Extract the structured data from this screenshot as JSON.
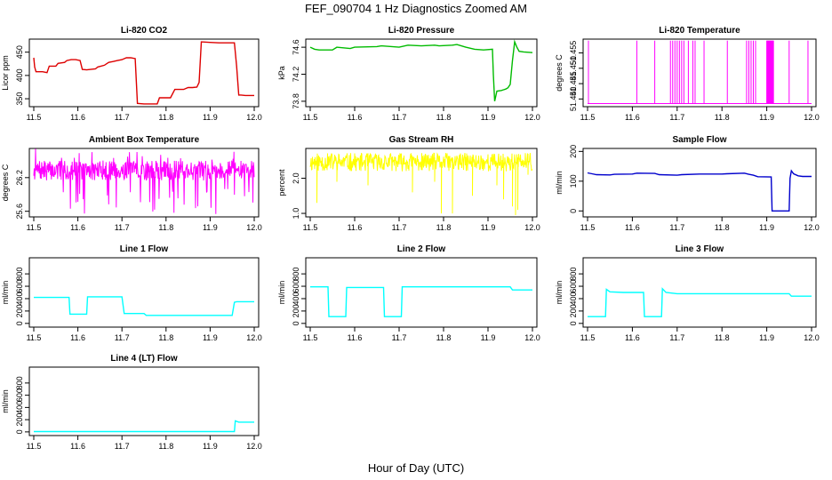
{
  "figure": {
    "title": "FEF_090704  1 Hz Diagnostics Zoomed AM",
    "xlabel": "Hour of Day (UTC)"
  },
  "chart_data": [
    {
      "type": "line",
      "title": "Li-820 CO2",
      "xlabel": "",
      "ylabel": "Licor ppm",
      "xlim": [
        11.5,
        12.0
      ],
      "ylim": [
        333,
        478
      ],
      "x_ticks": [
        11.5,
        11.6,
        11.7,
        11.8,
        11.9,
        12.0
      ],
      "x_tick_labels": [
        "11.5",
        "11.6",
        "11.7",
        "11.8",
        "11.9",
        "12.0"
      ],
      "y_ticks": [
        350,
        400,
        450
      ],
      "y_tick_labels": [
        "350",
        "400",
        "450"
      ],
      "series": [
        {
          "color": "#dd0000",
          "x": [
            11.5,
            11.502,
            11.505,
            11.52,
            11.53,
            11.535,
            11.55,
            11.555,
            11.57,
            11.575,
            11.585,
            11.595,
            11.605,
            11.61,
            11.62,
            11.64,
            11.645,
            11.66,
            11.67,
            11.68,
            11.69,
            11.7,
            11.705,
            11.71,
            11.72,
            11.73,
            11.735,
            11.75,
            11.78,
            11.785,
            11.8,
            11.81,
            11.82,
            11.84,
            11.85,
            11.86,
            11.87,
            11.875,
            11.88,
            11.9,
            11.92,
            11.95,
            11.955,
            11.96,
            11.965,
            11.97,
            11.98,
            12.0
          ],
          "y": [
            438,
            418,
            408,
            408,
            406,
            420,
            420,
            426,
            428,
            432,
            434,
            434,
            432,
            413,
            412,
            414,
            418,
            422,
            428,
            430,
            432,
            434,
            436,
            438,
            438,
            436,
            340,
            339,
            339,
            352,
            352,
            352,
            370,
            370,
            374,
            374,
            375,
            385,
            472,
            471,
            470,
            470,
            470,
            420,
            358,
            358,
            357,
            357
          ]
        }
      ]
    },
    {
      "type": "line",
      "title": "Li-820 Pressure",
      "xlabel": "",
      "ylabel": "kPa",
      "xlim": [
        11.5,
        12.0
      ],
      "ylim": [
        73.72,
        74.72
      ],
      "x_ticks": [
        11.5,
        11.6,
        11.7,
        11.8,
        11.9,
        12.0
      ],
      "x_tick_labels": [
        "11.5",
        "11.6",
        "11.7",
        "11.8",
        "11.9",
        "12.0"
      ],
      "y_ticks": [
        73.8,
        74.2,
        74.6
      ],
      "y_tick_labels": [
        "73.8",
        "74.2",
        "74.6"
      ],
      "series": [
        {
          "color": "#00bb00",
          "x": [
            11.5,
            11.51,
            11.52,
            11.55,
            11.56,
            11.59,
            11.6,
            11.65,
            11.66,
            11.7,
            11.72,
            11.75,
            11.78,
            11.79,
            11.82,
            11.83,
            11.85,
            11.87,
            11.89,
            11.91,
            11.912,
            11.915,
            11.92,
            11.93,
            11.935,
            11.94,
            11.945,
            11.95,
            11.955,
            11.96,
            11.965,
            11.97,
            11.98,
            12.0
          ],
          "y": [
            74.6,
            74.57,
            74.56,
            74.56,
            74.6,
            74.58,
            74.6,
            74.61,
            74.62,
            74.6,
            74.63,
            74.62,
            74.63,
            74.62,
            74.63,
            74.64,
            74.6,
            74.57,
            74.56,
            74.57,
            74.2,
            73.8,
            73.95,
            73.96,
            73.97,
            73.98,
            74.0,
            74.05,
            74.4,
            74.68,
            74.6,
            74.54,
            74.53,
            74.52
          ]
        }
      ]
    },
    {
      "type": "line",
      "title": "Li-820 Temperature",
      "xlabel": "",
      "ylabel": "degrees C",
      "xlim": [
        11.5,
        12.0
      ],
      "ylim": [
        51.4375,
        51.4595
      ],
      "x_ticks": [
        11.5,
        11.6,
        11.7,
        11.8,
        11.9,
        12.0
      ],
      "x_tick_labels": [
        "11.5",
        "11.6",
        "11.7",
        "11.8",
        "11.9",
        "12.0"
      ],
      "y_ticks": [
        51.44,
        51.445,
        51.45,
        51.455
      ],
      "y_tick_labels": [
        "51.440",
        "51.445",
        "51.450",
        "51.455"
      ],
      "baseline": 51.4385,
      "spike_top": 51.459,
      "spikes": [
        11.502,
        11.61,
        11.65,
        11.685,
        11.69,
        11.695,
        11.7,
        11.705,
        11.71,
        11.715,
        11.725,
        11.735,
        11.74,
        11.76,
        11.812,
        11.855,
        11.86,
        11.865,
        11.87,
        11.875,
        11.9,
        11.901,
        11.902,
        11.903,
        11.904,
        11.905,
        11.906,
        11.907,
        11.908,
        11.909,
        11.91,
        11.911,
        11.912,
        11.913,
        11.914,
        11.915,
        11.95,
        11.992
      ],
      "series": [
        {
          "color": "#ff00ff"
        }
      ]
    },
    {
      "type": "line",
      "title": "Ambient Box Temperature",
      "xlabel": "",
      "ylabel": "degrees C",
      "xlim": [
        11.5,
        12.0
      ],
      "ylim": [
        25.5,
        26.72
      ],
      "x_ticks": [
        11.5,
        11.6,
        11.7,
        11.8,
        11.9,
        12.0
      ],
      "x_tick_labels": [
        "11.5",
        "11.6",
        "11.7",
        "11.8",
        "11.9",
        "12.0"
      ],
      "y_ticks": [
        25.6,
        26.2
      ],
      "y_tick_labels": [
        "25.6",
        "26.2"
      ],
      "noise": {
        "center": 26.3,
        "band_low": 26.15,
        "band_high": 26.5,
        "min": 25.55,
        "max": 26.72,
        "seed": 7
      },
      "series": [
        {
          "color": "#ff00ff"
        }
      ]
    },
    {
      "type": "line",
      "title": "Gas Stream RH",
      "xlabel": "",
      "ylabel": "percent",
      "xlim": [
        11.5,
        12.0
      ],
      "ylim": [
        0.9,
        2.85
      ],
      "x_ticks": [
        11.5,
        11.6,
        11.7,
        11.8,
        11.9,
        12.0
      ],
      "x_tick_labels": [
        "11.5",
        "11.6",
        "11.7",
        "11.8",
        "11.9",
        "12.0"
      ],
      "y_ticks": [
        1.0,
        2.0
      ],
      "y_tick_labels": [
        "1.0",
        "2.0"
      ],
      "noise": {
        "center": 2.45,
        "band_low": 2.2,
        "band_high": 2.72,
        "seed": 11
      },
      "dips": [
        [
          11.515,
          1.3
        ],
        [
          11.56,
          1.9
        ],
        [
          11.63,
          1.8
        ],
        [
          11.73,
          1.6
        ],
        [
          11.78,
          1.9
        ],
        [
          11.795,
          1.0
        ],
        [
          11.82,
          1.0
        ],
        [
          11.865,
          1.5
        ],
        [
          11.92,
          1.8
        ],
        [
          11.935,
          1.4
        ],
        [
          11.955,
          1.2
        ],
        [
          11.962,
          0.95
        ],
        [
          11.967,
          1.1
        ],
        [
          11.99,
          2.1
        ]
      ],
      "series": [
        {
          "color": "#ffff00"
        }
      ]
    },
    {
      "type": "line",
      "title": "Sample Flow",
      "xlabel": "",
      "ylabel": "ml/min",
      "xlim": [
        11.5,
        12.0
      ],
      "ylim": [
        -20,
        210
      ],
      "x_ticks": [
        11.5,
        11.6,
        11.7,
        11.8,
        11.9,
        12.0
      ],
      "x_tick_labels": [
        "11.5",
        "11.6",
        "11.7",
        "11.8",
        "11.9",
        "12.0"
      ],
      "y_ticks": [
        0,
        100,
        200
      ],
      "y_tick_labels": [
        "0",
        "100",
        "200"
      ],
      "series": [
        {
          "color": "#0000cc",
          "x": [
            11.5,
            11.51,
            11.52,
            11.55,
            11.56,
            11.6,
            11.61,
            11.65,
            11.66,
            11.7,
            11.71,
            11.75,
            11.8,
            11.81,
            11.85,
            11.86,
            11.87,
            11.88,
            11.91,
            11.912,
            11.95,
            11.952,
            11.955,
            11.96,
            11.97,
            11.98,
            12.0
          ],
          "y": [
            128,
            125,
            122,
            121,
            123,
            124,
            127,
            126,
            122,
            120,
            122,
            124,
            124,
            125,
            127,
            123,
            120,
            115,
            114,
            0,
            0,
            110,
            135,
            125,
            118,
            116,
            116
          ]
        }
      ]
    },
    {
      "type": "line",
      "title": "Line 1 Flow",
      "xlabel": "",
      "ylabel": "ml/min",
      "xlim": [
        11.5,
        12.0
      ],
      "ylim": [
        -60,
        1060
      ],
      "x_ticks": [
        11.5,
        11.6,
        11.7,
        11.8,
        11.9,
        12.0
      ],
      "x_tick_labels": [
        "11.5",
        "11.6",
        "11.7",
        "11.8",
        "11.9",
        "12.0"
      ],
      "y_ticks": [
        0,
        200,
        400,
        600,
        800
      ],
      "y_tick_labels": [
        "0",
        "200",
        "400",
        "600",
        "800"
      ],
      "series": [
        {
          "color": "#00ffff",
          "x": [
            11.5,
            11.58,
            11.582,
            11.62,
            11.622,
            11.7,
            11.705,
            11.75,
            11.755,
            11.95,
            11.955,
            11.96,
            12.0
          ],
          "y": [
            420,
            420,
            150,
            150,
            430,
            430,
            160,
            160,
            130,
            130,
            340,
            350,
            350
          ]
        }
      ]
    },
    {
      "type": "line",
      "title": "Line 2 Flow",
      "xlabel": "",
      "ylabel": "ml/min",
      "xlim": [
        11.5,
        12.0
      ],
      "ylim": [
        -60,
        1060
      ],
      "x_ticks": [
        11.5,
        11.6,
        11.7,
        11.8,
        11.9,
        12.0
      ],
      "x_tick_labels": [
        "11.5",
        "11.6",
        "11.7",
        "11.8",
        "11.9",
        "12.0"
      ],
      "y_ticks": [
        0,
        200,
        400,
        600,
        800
      ],
      "y_tick_labels": [
        "0",
        "200",
        "400",
        "600",
        "800"
      ],
      "series": [
        {
          "color": "#00ffff",
          "x": [
            11.5,
            11.54,
            11.542,
            11.58,
            11.582,
            11.665,
            11.667,
            11.705,
            11.707,
            11.95,
            11.955,
            12.0
          ],
          "y": [
            590,
            590,
            110,
            110,
            580,
            580,
            110,
            110,
            590,
            590,
            540,
            540
          ]
        }
      ]
    },
    {
      "type": "line",
      "title": "Line 3 Flow",
      "xlabel": "",
      "ylabel": "ml/min",
      "xlim": [
        11.5,
        12.0
      ],
      "ylim": [
        -60,
        1060
      ],
      "x_ticks": [
        11.5,
        11.6,
        11.7,
        11.8,
        11.9,
        12.0
      ],
      "x_tick_labels": [
        "11.5",
        "11.6",
        "11.7",
        "11.8",
        "11.9",
        "12.0"
      ],
      "y_ticks": [
        0,
        200,
        400,
        600,
        800
      ],
      "y_tick_labels": [
        "0",
        "200",
        "400",
        "600",
        "800"
      ],
      "series": [
        {
          "color": "#00ffff",
          "x": [
            11.5,
            11.54,
            11.542,
            11.55,
            11.58,
            11.625,
            11.627,
            11.665,
            11.667,
            11.675,
            11.7,
            11.95,
            11.955,
            12.0
          ],
          "y": [
            110,
            110,
            550,
            510,
            500,
            500,
            110,
            110,
            560,
            500,
            480,
            480,
            440,
            440
          ]
        }
      ]
    },
    {
      "type": "line",
      "title": "Line 4 (LT) Flow",
      "xlabel": "",
      "ylabel": "ml/min",
      "xlim": [
        11.5,
        12.0
      ],
      "ylim": [
        -60,
        1060
      ],
      "x_ticks": [
        11.5,
        11.6,
        11.7,
        11.8,
        11.9,
        12.0
      ],
      "x_tick_labels": [
        "11.5",
        "11.6",
        "11.7",
        "11.8",
        "11.9",
        "12.0"
      ],
      "y_ticks": [
        0,
        200,
        400,
        600,
        800
      ],
      "y_tick_labels": [
        "0",
        "200",
        "400",
        "600",
        "800"
      ],
      "series": [
        {
          "color": "#00ffff",
          "x": [
            11.5,
            11.955,
            11.957,
            11.965,
            12.0
          ],
          "y": [
            5,
            5,
            180,
            160,
            160
          ]
        }
      ]
    }
  ]
}
